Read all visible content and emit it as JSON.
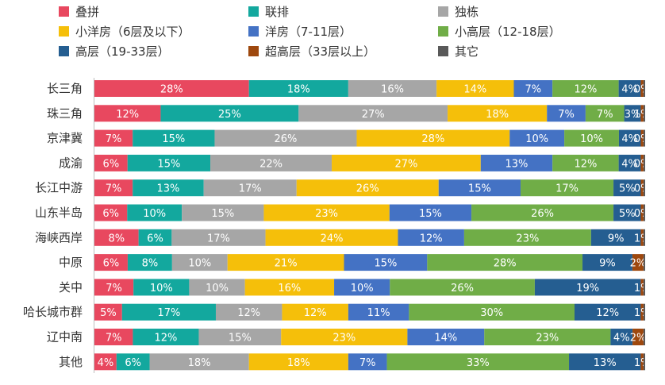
{
  "chart_data": {
    "type": "bar",
    "orientation": "horizontal",
    "stacked": true,
    "normalized": true,
    "title": "",
    "xlabel": "",
    "ylabel": "",
    "legend_position": "top",
    "grid": false,
    "categories": [
      "长三角",
      "珠三角",
      "京津冀",
      "成渝",
      "长江中游",
      "山东半岛",
      "海峡西岸",
      "中原",
      "关中",
      "哈长城市群",
      "辽中南",
      "其他"
    ],
    "series": [
      {
        "name": "叠拼",
        "color": "#e8485f",
        "values": [
          28,
          12,
          7,
          6,
          7,
          6,
          8,
          6,
          7,
          5,
          7,
          4
        ]
      },
      {
        "name": "联排",
        "color": "#13a89e",
        "values": [
          18,
          25,
          15,
          15,
          13,
          10,
          6,
          8,
          10,
          17,
          12,
          6
        ]
      },
      {
        "name": "独栋",
        "color": "#a6a6a6",
        "values": [
          16,
          27,
          26,
          22,
          17,
          15,
          17,
          10,
          10,
          12,
          15,
          18
        ]
      },
      {
        "name": "小洋房（6层及以下）",
        "color": "#f5bf0a",
        "values": [
          14,
          18,
          28,
          27,
          26,
          23,
          24,
          21,
          16,
          12,
          23,
          18
        ]
      },
      {
        "name": "洋房（7-11层）",
        "color": "#4472c4",
        "values": [
          7,
          7,
          10,
          13,
          15,
          15,
          12,
          15,
          10,
          11,
          14,
          7
        ]
      },
      {
        "name": "小高层（12-18层）",
        "color": "#70ad47",
        "values": [
          12,
          7,
          10,
          12,
          17,
          26,
          23,
          28,
          26,
          30,
          23,
          33
        ]
      },
      {
        "name": "高层（19-33层）",
        "color": "#255e91",
        "values": [
          4,
          3,
          4,
          4,
          5,
          5,
          9,
          9,
          19,
          12,
          4,
          13
        ]
      },
      {
        "name": "超高层（33层以上）",
        "color": "#9e480e",
        "values": [
          0.5,
          0.5,
          0.5,
          0.5,
          0.5,
          0.5,
          0.5,
          2,
          0.5,
          0.5,
          2,
          0.5
        ]
      },
      {
        "name": "其它",
        "color": "#595959",
        "values": [
          0.3,
          0.3,
          0.3,
          0.3,
          0.3,
          0.3,
          0.3,
          0.3,
          0.3,
          0.3,
          0.3,
          0.3
        ]
      }
    ],
    "data_labels": [
      [
        "28%",
        "18%",
        "16%",
        "14%",
        "7%",
        "12%",
        "4%",
        "0%",
        ""
      ],
      [
        "12%",
        "25%",
        "27%",
        "18%",
        "7%",
        "7%",
        "3%",
        "1%",
        ""
      ],
      [
        "7%",
        "15%",
        "26%",
        "28%",
        "10%",
        "10%",
        "4%",
        "0%",
        ""
      ],
      [
        "6%",
        "15%",
        "22%",
        "27%",
        "13%",
        "12%",
        "4%",
        "0%",
        ""
      ],
      [
        "7%",
        "13%",
        "17%",
        "26%",
        "15%",
        "17%",
        "5%",
        "0%",
        ""
      ],
      [
        "6%",
        "10%",
        "15%",
        "23%",
        "15%",
        "26%",
        "5%",
        "0%",
        ""
      ],
      [
        "8%",
        "6%",
        "17%",
        "24%",
        "12%",
        "23%",
        "9%",
        "1%",
        ""
      ],
      [
        "6%",
        "8%",
        "10%",
        "21%",
        "15%",
        "28%",
        "9%",
        "2%",
        ""
      ],
      [
        "7%",
        "10%",
        "10%",
        "16%",
        "10%",
        "26%",
        "19%",
        "1%",
        ""
      ],
      [
        "5%",
        "17%",
        "12%",
        "12%",
        "11%",
        "30%",
        "12%",
        "1%",
        ""
      ],
      [
        "7%",
        "12%",
        "15%",
        "23%",
        "14%",
        "23%",
        "4%",
        "2%",
        ""
      ],
      [
        "4%",
        "6%",
        "18%",
        "18%",
        "7%",
        "33%",
        "13%",
        "1%",
        ""
      ]
    ]
  }
}
